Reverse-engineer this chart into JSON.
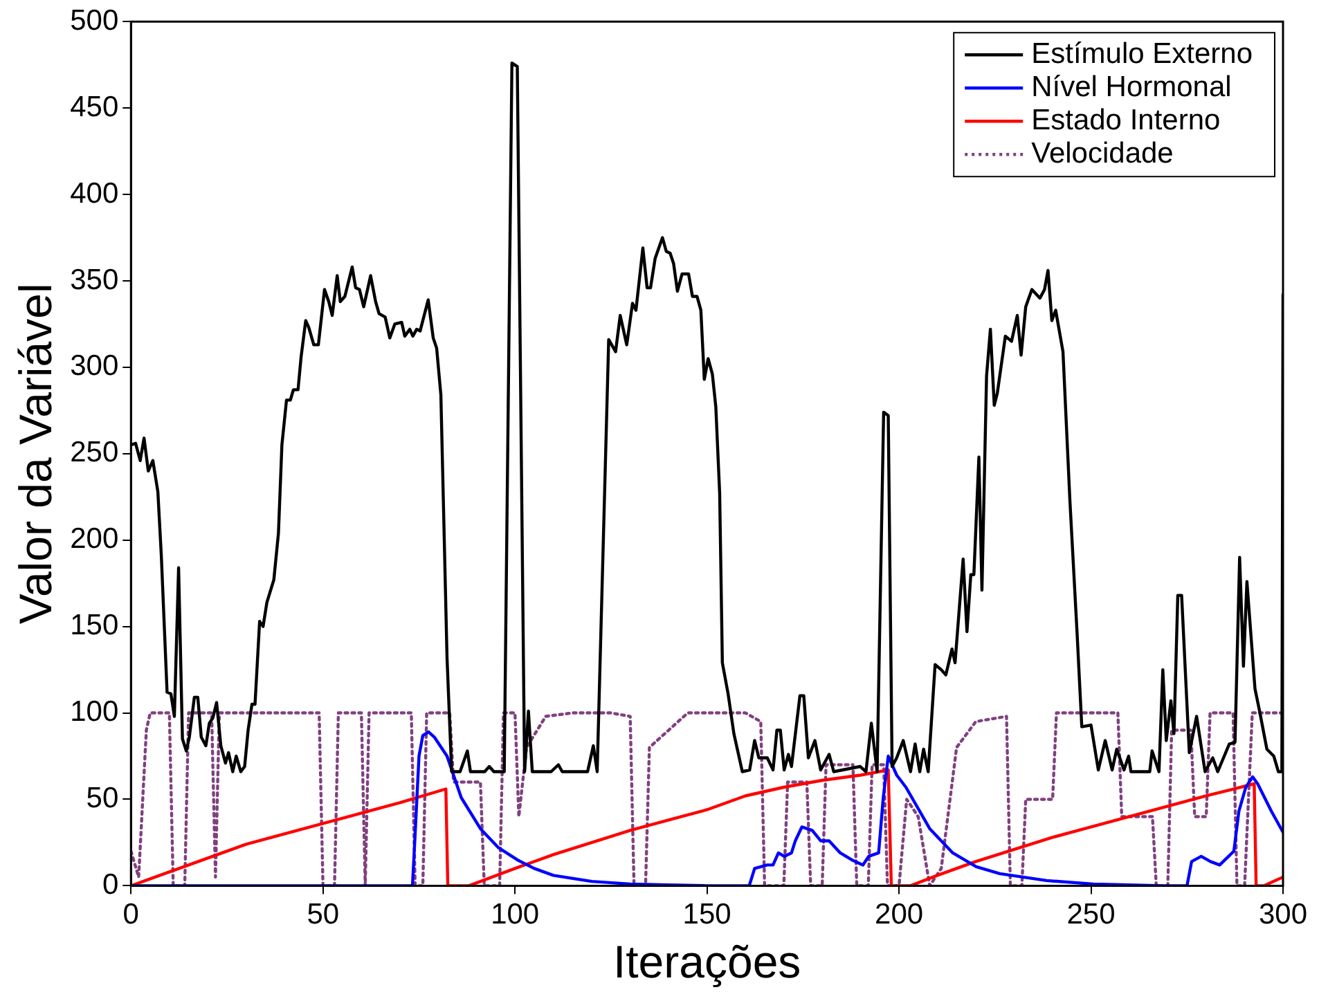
{
  "chart_data": {
    "type": "line",
    "xlabel": "Iterações",
    "ylabel": "Valor da Variável",
    "xlim": [
      0,
      300
    ],
    "ylim": [
      0,
      500
    ],
    "xticks": [
      0,
      50,
      100,
      150,
      200,
      250,
      300
    ],
    "yticks": [
      0,
      50,
      100,
      150,
      200,
      250,
      300,
      350,
      400,
      450,
      500
    ],
    "grid": false,
    "legend": "top right",
    "marker": "none",
    "series": [
      {
        "name": "Estímulo Externo",
        "color": "#000000",
        "line_style": "solid",
        "x": [
          0,
          1.2,
          2.4,
          3.4,
          4.5,
          5.7,
          7,
          7.9,
          9.4,
          10.4,
          11.3,
          12.4,
          13.4,
          14.4,
          15.2,
          16.5,
          17.4,
          18.3,
          19.5,
          20.4,
          21.3,
          22.3,
          23.4,
          24.6,
          25.4,
          26.5,
          27.4,
          28.6,
          29.6,
          30.5,
          31.5,
          32.3,
          33.5,
          34.4,
          35.4,
          37.2,
          38.4,
          39.3,
          40.5,
          41.5,
          42.3,
          43.5,
          44.3,
          45.5,
          46.3,
          47.6,
          48.8,
          50.4,
          51.5,
          52.4,
          53.7,
          54.5,
          55.7,
          57.6,
          58.5,
          59.5,
          60.6,
          62.4,
          63.7,
          64.6,
          66.2,
          67.4,
          68.7,
          70.5,
          71.3,
          72.6,
          73.4,
          74.4,
          75.3,
          77.4,
          78.7,
          79.6,
          80.7,
          82.3,
          83.5,
          85.7,
          87.6,
          88.4,
          92.1,
          93.3,
          94.5,
          97.2,
          99.2,
          100.6,
          102.5,
          103.5,
          104.5,
          109.4,
          111.3,
          112.3,
          118.9,
          120.4,
          121.4,
          124.4,
          126.2,
          127.4,
          129.1,
          130.6,
          131.5,
          133.3,
          134.4,
          135.3,
          136.5,
          138.4,
          139.4,
          140.4,
          141.3,
          142.3,
          143.5,
          145.2,
          146.2,
          147.4,
          148.4,
          149.3,
          150.3,
          151.4,
          152.3,
          153.3,
          154,
          155.5,
          157,
          159.2,
          161.1,
          162.4,
          163.5,
          165.7,
          167.2,
          168.2,
          169.1,
          170.1,
          171.2,
          172,
          174.2,
          175.2,
          176.4,
          178.1,
          179.6,
          181.8,
          183,
          189.9,
          191.4,
          192.8,
          194.3,
          196,
          197.2,
          198.2,
          199.4,
          201.1,
          203,
          204.2,
          205.4,
          206.4,
          207.6,
          209.4,
          211,
          212.2,
          213.8,
          214.6,
          216.7,
          217.7,
          218.7,
          219.5,
          220.8,
          221.6,
          222.8,
          223.8,
          224.8,
          225.6,
          227.7,
          229.3,
          230.8,
          231.8,
          233,
          234.6,
          236.7,
          237.9,
          238.8,
          239.8,
          240.8,
          242.7,
          244.5,
          246.4,
          247.6,
          250,
          251.9,
          253.7,
          255.5,
          256.7,
          258.6,
          259.8,
          260.4,
          265.3,
          265.9,
          267.7,
          268.7,
          269.6,
          270.8,
          271.6,
          272.6,
          273.6,
          275.6,
          277.5,
          279.7,
          281.7,
          283,
          286,
          287.5,
          288.7,
          289.7,
          290.6,
          292.7,
          293.9,
          295.8,
          297.6,
          298.8,
          299.7,
          300
        ],
        "values": [
          255,
          256,
          246,
          259,
          240,
          246,
          228,
          191,
          112,
          111,
          98,
          184,
          85,
          78,
          86,
          109,
          109,
          86,
          81,
          94,
          97,
          106,
          81,
          71,
          77,
          66,
          75,
          66,
          69,
          90,
          105,
          105,
          153,
          150,
          164,
          177,
          204,
          255,
          281,
          281,
          287,
          287,
          306,
          327,
          323,
          313,
          313,
          345,
          338,
          330,
          353,
          338,
          341,
          358,
          346,
          345,
          335,
          353,
          338,
          331,
          329,
          317,
          325,
          326,
          318,
          322,
          318,
          322,
          321,
          339,
          317,
          311,
          284,
          132,
          66,
          66,
          78,
          66,
          66,
          69,
          66,
          66,
          476,
          474,
          66,
          101,
          66,
          66,
          70,
          66,
          66,
          81,
          66,
          316,
          309,
          330,
          313,
          337,
          333,
          369,
          346,
          346,
          363,
          375,
          367,
          366,
          360,
          344,
          354,
          354,
          341,
          341,
          333,
          293,
          305,
          296,
          277,
          227,
          129,
          111,
          88,
          66,
          67,
          84,
          74,
          74,
          67,
          90,
          90,
          67,
          76,
          69,
          110,
          110,
          74,
          84,
          67,
          76,
          66,
          69,
          66,
          94,
          66,
          274,
          272,
          69,
          74,
          84,
          66,
          82,
          66,
          79,
          66,
          128,
          125,
          122,
          137,
          129,
          189,
          147,
          180,
          180,
          248,
          171,
          295,
          322,
          278,
          285,
          318,
          315,
          330,
          307,
          335,
          345,
          340,
          345,
          356,
          327,
          333,
          309,
          223,
          145,
          92,
          93,
          67,
          84,
          67,
          79,
          67,
          75,
          66,
          66,
          78,
          66,
          125,
          84,
          107,
          88,
          168,
          168,
          77,
          98,
          66,
          74,
          66,
          82,
          83,
          190,
          127,
          176,
          114,
          101,
          79,
          75,
          66,
          66,
          342
        ]
      },
      {
        "name": "Nível Hormonal",
        "color": "#0000ff",
        "line_style": "solid",
        "x": [
          0,
          73.3,
          74,
          75,
          76,
          77.5,
          79,
          82.3,
          86,
          91,
          95.7,
          100.6,
          105,
          110,
          120,
          130,
          140,
          150,
          161,
          162.4,
          165.7,
          167.2,
          168.6,
          170.1,
          172,
          173,
          174.7,
          177.4,
          179.6,
          181.8,
          184.7,
          187.7,
          190.6,
          192.1,
          194.7,
          195.9,
          197.2,
          199.4,
          201.8,
          208,
          214,
          220.1,
          226.2,
          232.3,
          238.4,
          250.6,
          268.9,
          275,
          276.2,
          278.7,
          281.1,
          283.5,
          287.2,
          288.5,
          290.3,
          292.1,
          293.4,
          297,
          300
        ],
        "values": [
          0,
          0,
          30,
          75,
          87,
          89,
          86,
          75,
          51,
          33,
          22,
          15,
          10,
          6,
          2.5,
          1,
          0.5,
          0,
          0,
          10,
          12,
          12,
          19,
          17,
          19,
          26,
          34,
          32,
          26,
          26,
          19,
          15,
          12,
          17,
          19,
          51,
          75,
          64,
          57,
          33,
          19,
          11,
          7,
          5,
          3,
          1,
          0,
          0,
          14,
          17,
          14,
          12,
          20,
          43,
          57,
          63,
          59,
          43,
          31
        ]
      },
      {
        "name": "Estado Interno",
        "color": "#ff0000",
        "line_style": "solid",
        "x": [
          0,
          10,
          20,
          30,
          40,
          50,
          60,
          70,
          82,
          82.5,
          88,
          100,
          110,
          120,
          130,
          140,
          150,
          160,
          170,
          180,
          190,
          197.2,
          198,
          203,
          210,
          220,
          230,
          240,
          250,
          260,
          270,
          280,
          292.5,
          293,
          295,
          300
        ],
        "values": [
          0,
          8,
          16,
          24,
          30,
          36,
          42,
          48,
          56,
          0,
          0,
          10,
          18,
          25,
          32,
          38,
          44,
          52,
          57,
          61,
          64,
          67,
          0,
          0,
          6,
          14,
          21,
          28,
          34,
          40,
          46,
          52,
          59,
          0,
          0,
          5
        ]
      },
      {
        "name": "Velocidade",
        "color": "#804080",
        "line_style": "dotted",
        "x": [
          0,
          2,
          4,
          5,
          10,
          11,
          14,
          15,
          21,
          22,
          23,
          49,
          50,
          53,
          54,
          60,
          61,
          62,
          73,
          74,
          76,
          77,
          83,
          84,
          91,
          92,
          96,
          97,
          100,
          101,
          103,
          108,
          115,
          125,
          130,
          131,
          134,
          135,
          145,
          160,
          164,
          165,
          170,
          171,
          176,
          177,
          180,
          181,
          188,
          189,
          192,
          193,
          196,
          197,
          200,
          202,
          205,
          208,
          211,
          215,
          220,
          228,
          229,
          232,
          233,
          240,
          241,
          257,
          258,
          266,
          267,
          270,
          271,
          276,
          277,
          280,
          281,
          287,
          288,
          290,
          292,
          300
        ],
        "values": [
          20,
          5,
          90,
          100,
          100,
          0,
          0,
          100,
          100,
          5,
          100,
          100,
          0,
          0,
          100,
          100,
          0,
          100,
          100,
          0,
          0,
          100,
          100,
          60,
          60,
          0,
          0,
          100,
          100,
          40,
          80,
          98,
          100,
          100,
          98,
          0,
          0,
          80,
          100,
          100,
          95,
          0,
          0,
          60,
          60,
          0,
          0,
          70,
          70,
          0,
          0,
          70,
          70,
          0,
          0,
          50,
          40,
          0,
          10,
          80,
          95,
          98,
          0,
          0,
          50,
          50,
          100,
          100,
          40,
          40,
          0,
          0,
          90,
          90,
          40,
          40,
          100,
          100,
          0,
          0,
          100,
          100
        ]
      }
    ]
  }
}
